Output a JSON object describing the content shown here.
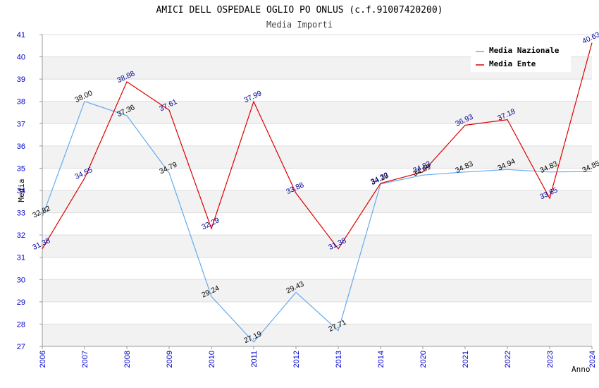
{
  "chart_data": {
    "type": "line",
    "title": "AMICI DELL OSPEDALE OGLIO PO ONLUS (c.f.91007420200)",
    "subtitle": "Media Importi",
    "xlabel": "Anno",
    "ylabel": "Media",
    "ylim": [
      27,
      41
    ],
    "yticks": [
      "27",
      "28",
      "29",
      "30",
      "31",
      "32",
      "33",
      "34",
      "35",
      "36",
      "37",
      "38",
      "39",
      "40",
      "41"
    ],
    "categories": [
      "2006",
      "2007",
      "2008",
      "2009",
      "2010",
      "2011",
      "2012",
      "2013",
      "2014",
      "2020",
      "2021",
      "2022",
      "2023",
      "2024"
    ],
    "legend_position": "top-right",
    "series": [
      {
        "name": "Media Nazionale",
        "color": "#66aaee",
        "label_color": "#000000",
        "values": [
          32.82,
          38.0,
          37.36,
          34.79,
          29.24,
          27.19,
          29.43,
          27.71,
          34.29,
          34.69,
          34.83,
          34.94,
          34.83,
          34.85
        ],
        "labels": [
          "32.82",
          "38.00",
          "37.36",
          "34.79",
          "29.24",
          "27.19",
          "29.43",
          "27.71",
          "34.29",
          "34.69",
          "34.83",
          "34.94",
          "34.83",
          "34.85"
        ]
      },
      {
        "name": "Media Ente",
        "color": "#dd0000",
        "label_color": "#000099",
        "values": [
          31.38,
          34.55,
          38.88,
          37.61,
          32.29,
          37.99,
          33.88,
          31.38,
          34.32,
          34.83,
          36.93,
          37.18,
          33.65,
          40.63
        ],
        "labels": [
          "31.38",
          "34.55",
          "38.88",
          "37.61",
          "32.29",
          "37.99",
          "33.88",
          "31.38",
          "34.32",
          "34.83",
          "36.93",
          "37.18",
          "33.65",
          "40.63"
        ]
      }
    ]
  }
}
